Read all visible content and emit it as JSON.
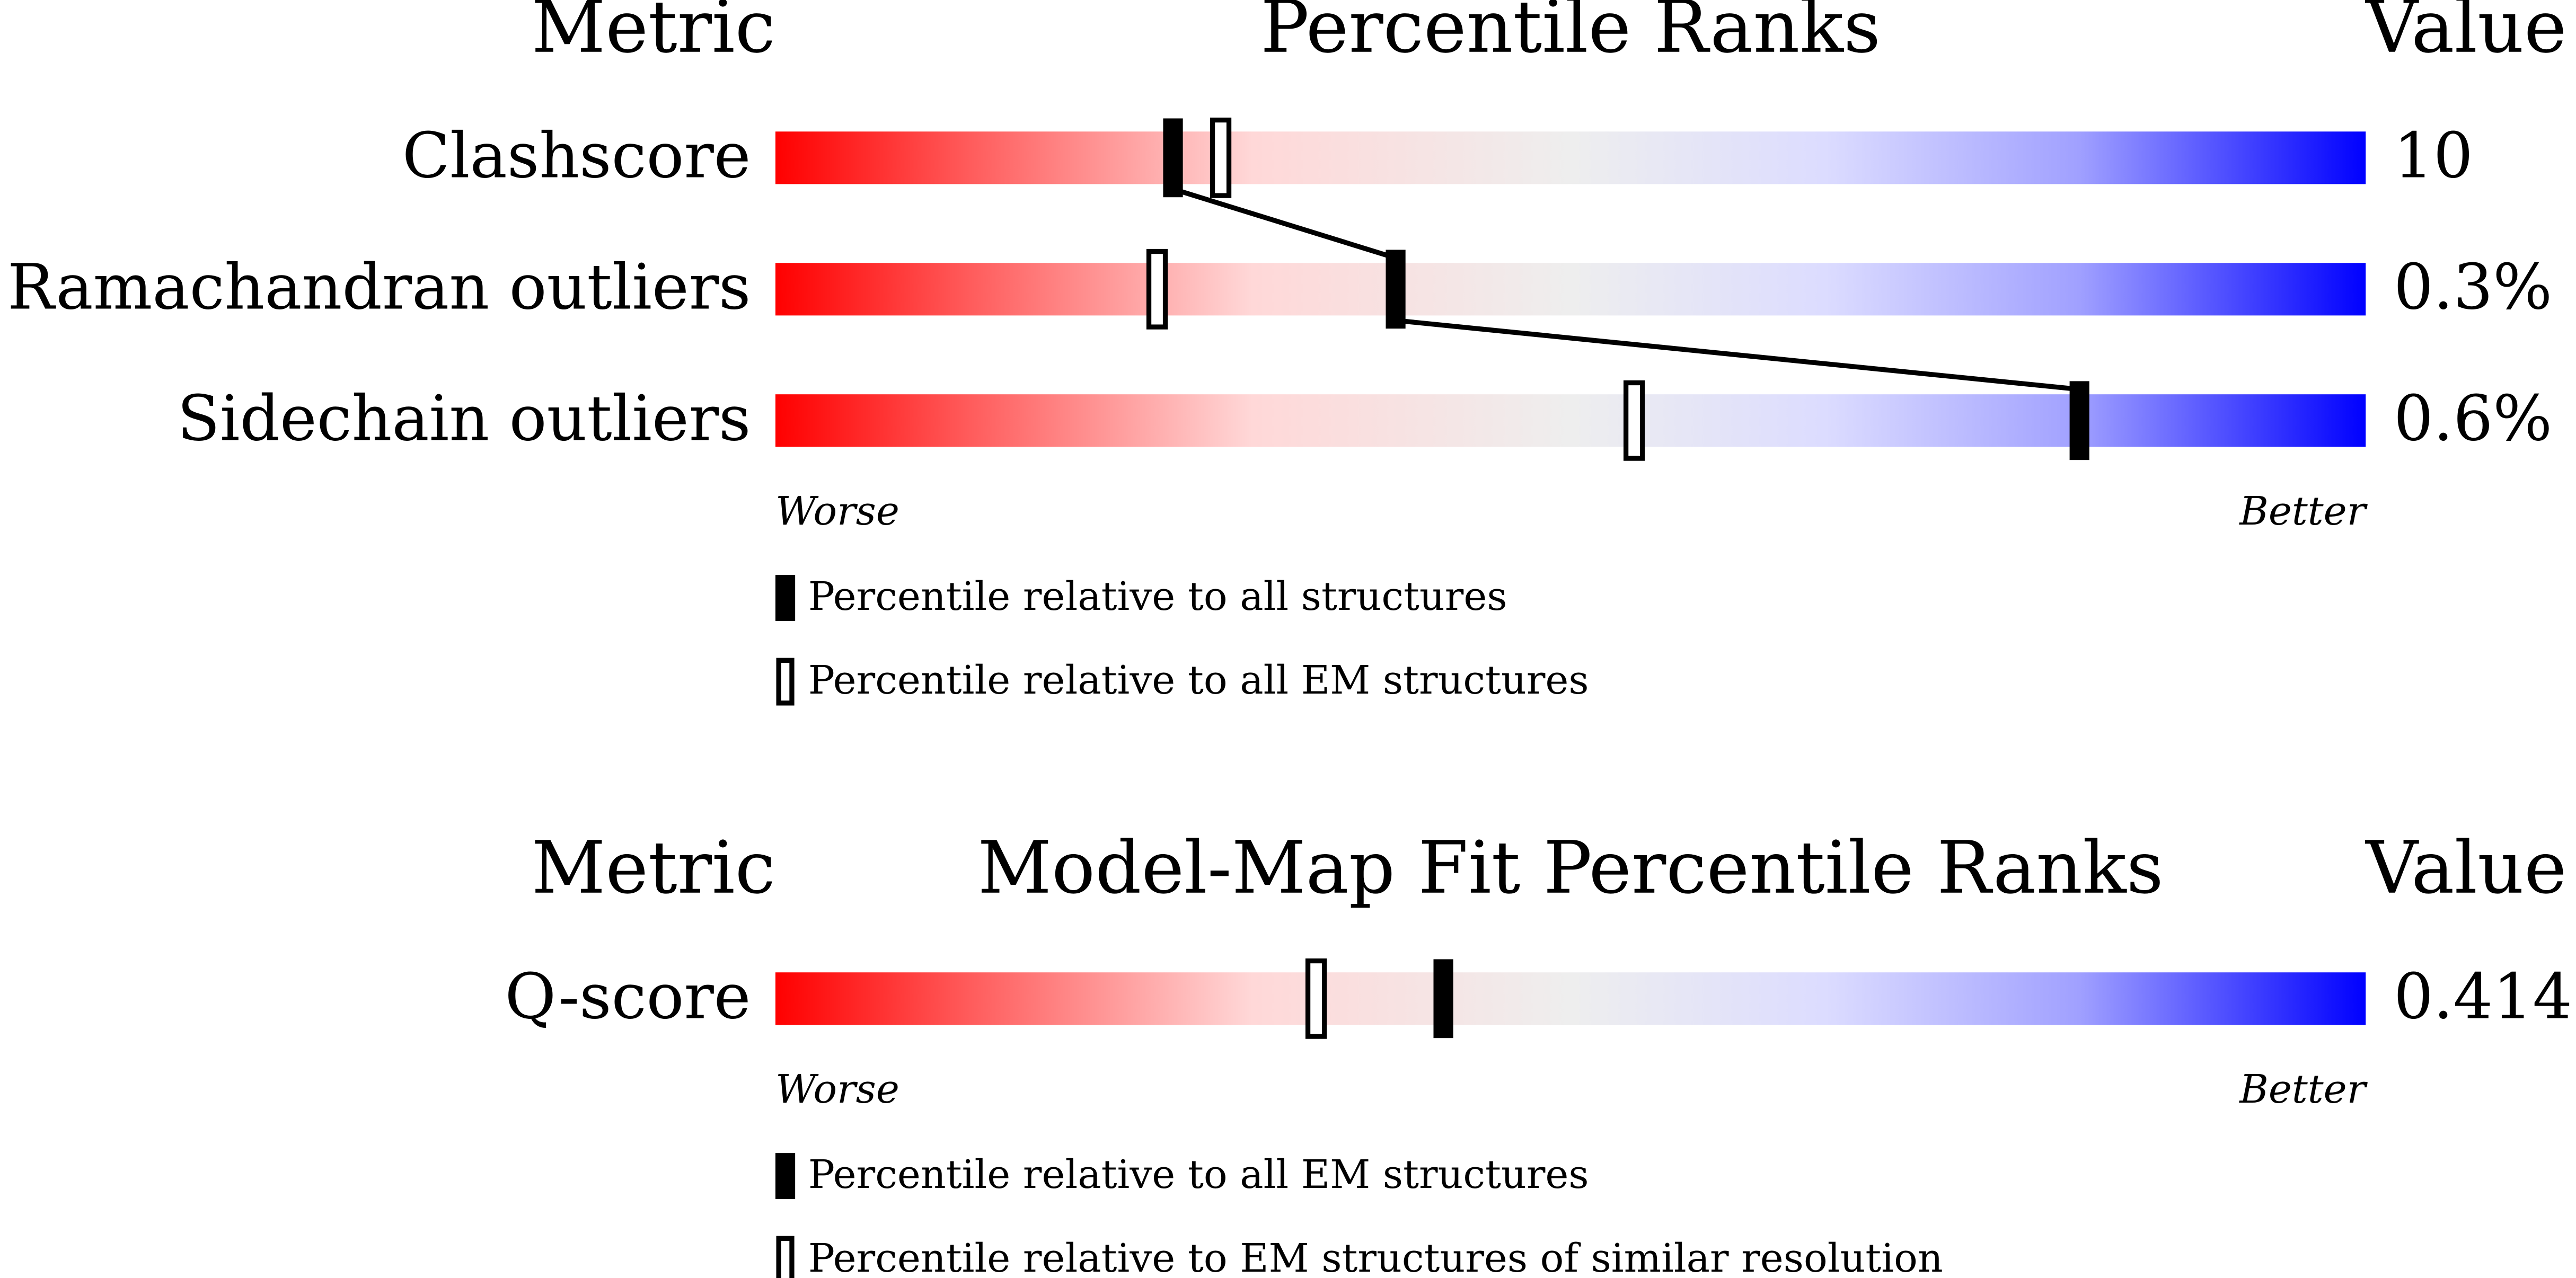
{
  "panels": [
    {
      "headers": {
        "metric": "Metric",
        "title": "Percentile Ranks",
        "value": "Value"
      },
      "rows": [
        {
          "metric": "Clashscore",
          "value": "10",
          "percentile_all": 25,
          "percentile_em": 28
        },
        {
          "metric": "Ramachandran outliers",
          "value": "0.3%",
          "percentile_all": 39,
          "percentile_em": 24
        },
        {
          "metric": "Sidechain outliers",
          "value": "0.6%",
          "percentile_all": 82,
          "percentile_em": 54
        }
      ],
      "worse": "Worse",
      "better": "Better",
      "legend_filled": "Percentile relative to all structures",
      "legend_open": "Percentile relative to all EM structures"
    },
    {
      "headers": {
        "metric": "Metric",
        "title": "Model-Map Fit Percentile Ranks",
        "value": "Value"
      },
      "rows": [
        {
          "metric": "Q-score",
          "value": "0.414",
          "percentile_all": 42,
          "percentile_em": 34
        }
      ],
      "worse": "Worse",
      "better": "Better",
      "legend_filled": "Percentile relative to all EM structures",
      "legend_open": "Percentile relative to EM structures of similar resolution"
    }
  ]
}
